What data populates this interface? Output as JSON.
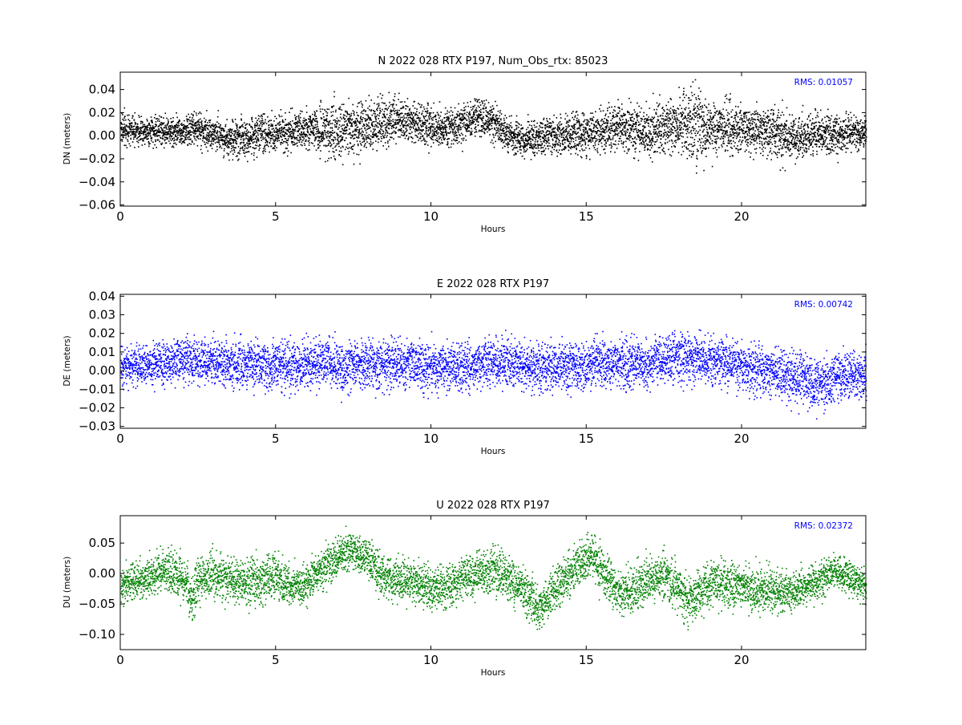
{
  "chart_data": [
    {
      "type": "scatter",
      "title": "N 2022 028 RTX  P197, Num_Obs_rtx: 85023",
      "xlabel": "Hours",
      "ylabel": "DN (meters)",
      "xlim": [
        0,
        24
      ],
      "ylim": [
        -0.061,
        0.055
      ],
      "xticks": [
        0,
        5,
        10,
        15,
        20
      ],
      "xtick_labels": [
        "0",
        "5",
        "10",
        "15",
        "20"
      ],
      "yticks": [
        0.04,
        0.02,
        0.0,
        -0.02,
        -0.04,
        -0.06
      ],
      "ytick_labels": [
        "0.04",
        "0.02",
        "0.00",
        "−0.02",
        "−0.04",
        "−0.06"
      ],
      "annotation": "RMS:  0.01057",
      "color": "#000000",
      "annotation_color": "#0000ff",
      "trend": {
        "x": [
          0,
          1,
          2,
          2.4,
          3,
          3.5,
          4,
          5,
          6,
          6.7,
          7,
          8,
          8.8,
          9.5,
          10,
          11,
          11.5,
          12,
          12.5,
          13,
          14,
          15,
          16,
          17,
          18,
          18.2,
          19,
          20,
          21,
          21.5,
          22,
          23,
          24
        ],
        "y": [
          0.006,
          0.005,
          0.004,
          0.006,
          0.002,
          -0.002,
          0.0,
          0.003,
          0.005,
          0.006,
          0.004,
          0.01,
          0.014,
          0.012,
          0.006,
          0.01,
          0.016,
          0.012,
          0.0,
          -0.002,
          0.002,
          0.003,
          0.008,
          0.004,
          0.01,
          0.012,
          0.008,
          0.006,
          0.004,
          -0.002,
          0.0,
          0.002,
          0.004
        ]
      },
      "spread": {
        "x": [
          0,
          2,
          4,
          6,
          6.7,
          8,
          9,
          11.5,
          13,
          16,
          18,
          18.2,
          20,
          21.5,
          24
        ],
        "y": [
          0.012,
          0.012,
          0.016,
          0.014,
          0.025,
          0.02,
          0.018,
          0.014,
          0.014,
          0.018,
          0.022,
          0.03,
          0.018,
          0.02,
          0.012
        ]
      }
    },
    {
      "type": "scatter",
      "title": "E 2022 028 RTX  P197",
      "xlabel": "Hours",
      "ylabel": "DE (meters)",
      "xlim": [
        0,
        24
      ],
      "ylim": [
        -0.031,
        0.041
      ],
      "xticks": [
        0,
        5,
        10,
        15,
        20
      ],
      "xtick_labels": [
        "0",
        "5",
        "10",
        "15",
        "20"
      ],
      "yticks": [
        0.04,
        0.03,
        0.02,
        0.01,
        0.0,
        -0.01,
        -0.02,
        -0.03
      ],
      "ytick_labels": [
        "0.04",
        "0.03",
        "0.02",
        "0.01",
        "0.00",
        "−0.01",
        "−0.02",
        "−0.03"
      ],
      "annotation": "RMS:  0.00742",
      "color": "#0000ff",
      "annotation_color": "#0000ff",
      "trend": {
        "x": [
          0,
          1,
          2,
          3,
          4,
          5,
          6,
          6.7,
          7,
          8,
          9,
          10,
          11,
          11.6,
          12.3,
          13,
          14,
          15,
          16,
          17,
          18,
          19,
          20,
          21,
          22,
          22.5,
          23,
          24
        ],
        "y": [
          0.002,
          0.004,
          0.006,
          0.004,
          0.004,
          0.003,
          0.004,
          0.006,
          0.002,
          0.004,
          0.003,
          0.002,
          0.002,
          0.004,
          0.006,
          0.002,
          0.002,
          0.004,
          0.004,
          0.004,
          0.008,
          0.006,
          0.002,
          0.0,
          -0.004,
          -0.008,
          -0.004,
          -0.002
        ]
      },
      "spread": {
        "x": [
          0,
          2,
          6.7,
          11.6,
          18,
          21,
          22.5,
          24
        ],
        "y": [
          0.009,
          0.011,
          0.013,
          0.012,
          0.012,
          0.012,
          0.014,
          0.011
        ]
      }
    },
    {
      "type": "scatter",
      "title": "U 2022 028 RTX  P197",
      "xlabel": "Hours",
      "ylabel": "DU (meters)",
      "xlim": [
        0,
        24
      ],
      "ylim": [
        -0.125,
        0.095
      ],
      "xticks": [
        0,
        5,
        10,
        15,
        20
      ],
      "xtick_labels": [
        "0",
        "5",
        "10",
        "15",
        "20"
      ],
      "yticks": [
        0.05,
        0.0,
        -0.05,
        -0.1
      ],
      "ytick_labels": [
        "0.05",
        "0.00",
        "−0.05",
        "−0.10"
      ],
      "annotation": "RMS:  0.02372",
      "color": "#008000",
      "annotation_color": "#0000ff",
      "trend": {
        "x": [
          0,
          0.5,
          1,
          1.5,
          2,
          2.3,
          2.5,
          3,
          4,
          5,
          5.5,
          6,
          6.5,
          7,
          7.5,
          8,
          8.3,
          9,
          10,
          10.5,
          11,
          12,
          12.5,
          13,
          13.5,
          14,
          14.5,
          15,
          15.5,
          16,
          17,
          17.5,
          18,
          18.3,
          19,
          20,
          20.5,
          21,
          21.5,
          22,
          23,
          24
        ],
        "y": [
          -0.02,
          -0.01,
          0.0,
          0.005,
          -0.01,
          -0.04,
          -0.01,
          -0.005,
          -0.015,
          -0.005,
          -0.02,
          -0.015,
          0.01,
          0.03,
          0.04,
          0.025,
          0.0,
          -0.01,
          -0.025,
          -0.02,
          -0.005,
          0.005,
          -0.01,
          -0.03,
          -0.06,
          -0.02,
          0.0,
          0.03,
          0.01,
          -0.035,
          -0.01,
          0.0,
          -0.03,
          -0.045,
          -0.015,
          -0.02,
          -0.03,
          -0.025,
          -0.03,
          -0.025,
          0.005,
          -0.02
        ]
      },
      "spread": {
        "x": [
          0,
          2.3,
          7.5,
          13.5,
          15,
          18.3,
          20.5,
          24
        ],
        "y": [
          0.025,
          0.035,
          0.03,
          0.035,
          0.035,
          0.035,
          0.035,
          0.025
        ]
      }
    }
  ]
}
